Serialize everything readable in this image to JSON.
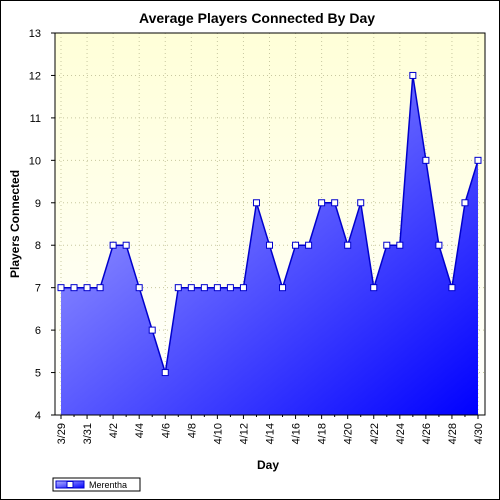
{
  "chart_data": {
    "type": "area",
    "title": "Average Players Connected By Day",
    "xlabel": "Day",
    "ylabel": "Players Connected",
    "ylim": [
      4,
      13
    ],
    "yticks": [
      4,
      5,
      6,
      7,
      8,
      9,
      10,
      11,
      12,
      13
    ],
    "x": [
      "3/29",
      "3/30",
      "3/31",
      "4/1",
      "4/2",
      "4/3",
      "4/4",
      "4/5",
      "4/6",
      "4/7",
      "4/8",
      "4/9",
      "4/10",
      "4/11",
      "4/12",
      "4/13",
      "4/14",
      "4/15",
      "4/16",
      "4/17",
      "4/18",
      "4/19",
      "4/20",
      "4/21",
      "4/22",
      "4/23",
      "4/24",
      "4/25",
      "4/26",
      "4/27",
      "4/28",
      "4/29",
      "4/30"
    ],
    "xtick_labels": [
      "3/29",
      "3/31",
      "4/2",
      "4/4",
      "4/6",
      "4/8",
      "4/10",
      "4/12",
      "4/14",
      "4/16",
      "4/18",
      "4/20",
      "4/22",
      "4/24",
      "4/26",
      "4/28",
      "4/30"
    ],
    "series": [
      {
        "name": "Merentha",
        "values": [
          7,
          7,
          7,
          7,
          8,
          8,
          7,
          6,
          5,
          7,
          7,
          7,
          7,
          7,
          7,
          9,
          8,
          7,
          8,
          8,
          9,
          9,
          8,
          9,
          7,
          8,
          8,
          12,
          10,
          8,
          7,
          9,
          10
        ]
      }
    ],
    "grid": true,
    "legend": "bottom-left",
    "colors": {
      "plot_background_top": "#ffffd8",
      "plot_background_bottom": "#ffffff",
      "area_start": "#b4b4ff",
      "area_end": "#0000ff",
      "line": "#0000cc",
      "marker_fill": "#ffffff",
      "grid": "#c8c8a0"
    }
  }
}
